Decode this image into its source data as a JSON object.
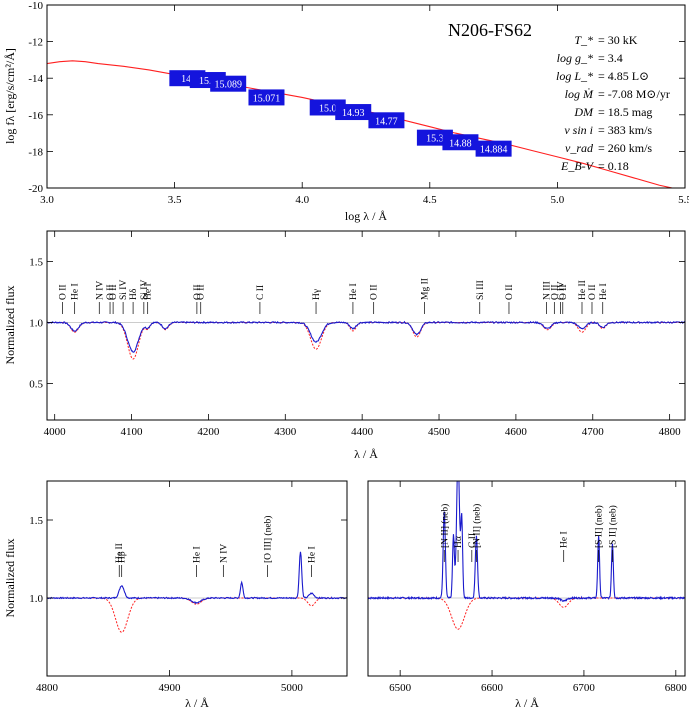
{
  "figure_title": "N206-FS62",
  "parameters": [
    {
      "name": "T_*",
      "value": "= 30 kK"
    },
    {
      "name": "log g_*",
      "value": "= 3.4"
    },
    {
      "name": "log L_*",
      "value": "= 4.85 L⊙"
    },
    {
      "name": "log Ṁ",
      "value": "= -7.08 M⊙/yr"
    },
    {
      "name": "DM",
      "value": "= 18.5 mag"
    },
    {
      "name": "v sin i",
      "value": "= 383 km/s"
    },
    {
      "name": "v_rad",
      "value": "= 260 km/s"
    },
    {
      "name": "E_B-V",
      "value": "= 0.18"
    }
  ],
  "colors": {
    "model": "#ff2020",
    "observed": "#1a1acc",
    "photometry_box": "#1414dd"
  },
  "chart_data": [
    {
      "type": "line",
      "panel": "sed",
      "xlabel": "log λ / Å",
      "ylabel": "log fλ [erg/s/cm²/Å]",
      "xlim": [
        3.0,
        5.5
      ],
      "ylim": [
        -20,
        -10
      ],
      "xticks": [
        "3.0",
        "3.5",
        "4.0",
        "4.5",
        "5.0",
        "5.5"
      ],
      "yticks": [
        "-10",
        "-12",
        "-14",
        "-16",
        "-18",
        "-20"
      ],
      "model_sed": {
        "x": [
          3.0,
          3.05,
          3.1,
          3.15,
          3.2,
          3.3,
          3.4,
          3.5,
          3.6,
          3.7,
          3.8,
          3.9,
          4.0,
          4.1,
          4.2,
          4.3,
          4.4,
          4.5,
          4.6,
          4.7,
          4.8,
          4.9,
          5.0,
          5.1,
          5.2,
          5.3,
          5.4,
          5.45
        ],
        "y": [
          -13.2,
          -13.1,
          -13.05,
          -13.1,
          -13.2,
          -13.35,
          -13.55,
          -13.8,
          -14.05,
          -14.3,
          -14.55,
          -14.8,
          -15.05,
          -15.35,
          -15.65,
          -15.95,
          -16.3,
          -16.65,
          -17.0,
          -17.3,
          -17.6,
          -17.95,
          -18.3,
          -18.65,
          -19.05,
          -19.45,
          -19.85,
          -20.0
        ]
      },
      "photometry": [
        {
          "label": "14.",
          "x": 3.55,
          "y": -14.0
        },
        {
          "label": "15.1",
          "x": 3.63,
          "y": -14.1
        },
        {
          "label": "15.089",
          "x": 3.71,
          "y": -14.3
        },
        {
          "label": "15.071",
          "x": 3.86,
          "y": -15.05
        },
        {
          "label": "15.0",
          "x": 4.1,
          "y": -15.6
        },
        {
          "label": "14.93",
          "x": 4.2,
          "y": -15.85
        },
        {
          "label": "14.77",
          "x": 4.33,
          "y": -16.3
        },
        {
          "label": "15.3",
          "x": 4.52,
          "y": -17.25
        },
        {
          "label": "14.88",
          "x": 4.62,
          "y": -17.5
        },
        {
          "label": "14.884",
          "x": 4.75,
          "y": -17.85
        }
      ]
    },
    {
      "type": "line",
      "panel": "blue",
      "xlabel": "λ / Å",
      "ylabel": "Normalized flux",
      "xlim": [
        3990,
        4820
      ],
      "ylim": [
        0.2,
        1.75
      ],
      "xticks": [
        "4000",
        "4100",
        "4200",
        "4300",
        "4400",
        "4500",
        "4600",
        "4700",
        "4800"
      ],
      "yticks": [
        "0.5",
        "1.0",
        "1.5"
      ],
      "line_ids": [
        {
          "label": "O II",
          "x": 4010
        },
        {
          "label": "He I",
          "x": 4026
        },
        {
          "label": "N IV",
          "x": 4058
        },
        {
          "label": "O II",
          "x": 4072
        },
        {
          "label": "O II",
          "x": 4076
        },
        {
          "label": "Si IV",
          "x": 4089
        },
        {
          "label": "Hδ",
          "x": 4102
        },
        {
          "label": "Si IV",
          "x": 4116
        },
        {
          "label": "He I",
          "x": 4121
        },
        {
          "label": "O II",
          "x": 4185
        },
        {
          "label": "O II",
          "x": 4190
        },
        {
          "label": "C II",
          "x": 4267
        },
        {
          "label": "Hγ",
          "x": 4340
        },
        {
          "label": "He I",
          "x": 4388
        },
        {
          "label": "O II",
          "x": 4415
        },
        {
          "label": "Mg II",
          "x": 4481
        },
        {
          "label": "Si III",
          "x": 4553
        },
        {
          "label": "O II",
          "x": 4591
        },
        {
          "label": "N III",
          "x": 4640
        },
        {
          "label": "O II",
          "x": 4650
        },
        {
          "label": "C IV",
          "x": 4658
        },
        {
          "label": "O II",
          "x": 4661
        },
        {
          "label": "He II",
          "x": 4686
        },
        {
          "label": "O II",
          "x": 4699
        },
        {
          "label": "He I",
          "x": 4713
        }
      ],
      "model_lines": [
        [
          4026,
          0.08,
          5
        ],
        [
          4102,
          0.3,
          7
        ],
        [
          4121,
          0.05,
          3
        ],
        [
          4144,
          0.06,
          4
        ],
        [
          4340,
          0.22,
          7
        ],
        [
          4388,
          0.07,
          4
        ],
        [
          4471,
          0.12,
          5
        ],
        [
          4641,
          0.06,
          5
        ],
        [
          4686,
          0.08,
          5
        ],
        [
          4713,
          0.05,
          4
        ]
      ],
      "observed_lines": [
        [
          4026,
          0.07,
          5
        ],
        [
          4102,
          0.24,
          7
        ],
        [
          4121,
          0.04,
          3
        ],
        [
          4144,
          0.05,
          4
        ],
        [
          4340,
          0.16,
          7
        ],
        [
          4388,
          0.05,
          4
        ],
        [
          4471,
          0.1,
          5
        ],
        [
          4641,
          0.05,
          5
        ],
        [
          4686,
          0.05,
          5
        ],
        [
          4713,
          0.04,
          4
        ]
      ]
    },
    {
      "type": "line",
      "panel": "hbeta",
      "xlabel": "λ / Å",
      "ylabel": "Normalized flux",
      "xlim": [
        4800,
        5045
      ],
      "ylim": [
        0.5,
        1.75
      ],
      "xticks": [
        "4800",
        "4900",
        "5000"
      ],
      "yticks": [
        "1.0",
        "1.5"
      ],
      "line_ids": [
        {
          "label": "He II",
          "x": 4859
        },
        {
          "label": "Hβ",
          "x": 4861
        },
        {
          "label": "He I",
          "x": 4922
        },
        {
          "label": "N IV",
          "x": 4944
        },
        {
          "label": "[O III] (neb)",
          "x": 4980
        },
        {
          "label": "He I",
          "x": 5016
        }
      ],
      "model_lines": [
        [
          4861,
          0.22,
          5
        ],
        [
          4922,
          0.04,
          4
        ],
        [
          5016,
          0.05,
          3
        ]
      ],
      "observed_lines": [
        [
          4861,
          -0.08,
          2
        ],
        [
          4922,
          0.03,
          4
        ],
        [
          4959,
          -0.1,
          1
        ],
        [
          5007,
          -0.3,
          1
        ],
        [
          5016,
          -0.03,
          2
        ]
      ]
    },
    {
      "type": "line",
      "panel": "halpha",
      "xlabel": "λ / Å",
      "xlim": [
        6465,
        6810
      ],
      "ylim": [
        0.5,
        1.75
      ],
      "xticks": [
        "6500",
        "6600",
        "6700",
        "6800"
      ],
      "line_ids": [
        {
          "label": "[N II] (neb)",
          "x": 6548
        },
        {
          "label": "Hα",
          "x": 6563
        },
        {
          "label": "C II",
          "x": 6578
        },
        {
          "label": "[N II] (neb)",
          "x": 6583
        },
        {
          "label": "He I",
          "x": 6678
        },
        {
          "label": "[S II] (neb)",
          "x": 6716
        },
        {
          "label": "[S II] (neb)",
          "x": 6731
        }
      ],
      "model_lines": [
        [
          6563,
          0.2,
          7
        ],
        [
          6678,
          0.06,
          5
        ]
      ],
      "observed_lines": [
        [
          6548,
          -0.55,
          1.2
        ],
        [
          6563,
          -0.9,
          1.6
        ],
        [
          6558,
          -0.4,
          1
        ],
        [
          6567,
          -0.5,
          1
        ],
        [
          6583,
          -0.4,
          1.2
        ],
        [
          6678,
          0.02,
          3
        ],
        [
          6716,
          -0.4,
          1
        ],
        [
          6731,
          -0.35,
          1
        ]
      ]
    }
  ]
}
